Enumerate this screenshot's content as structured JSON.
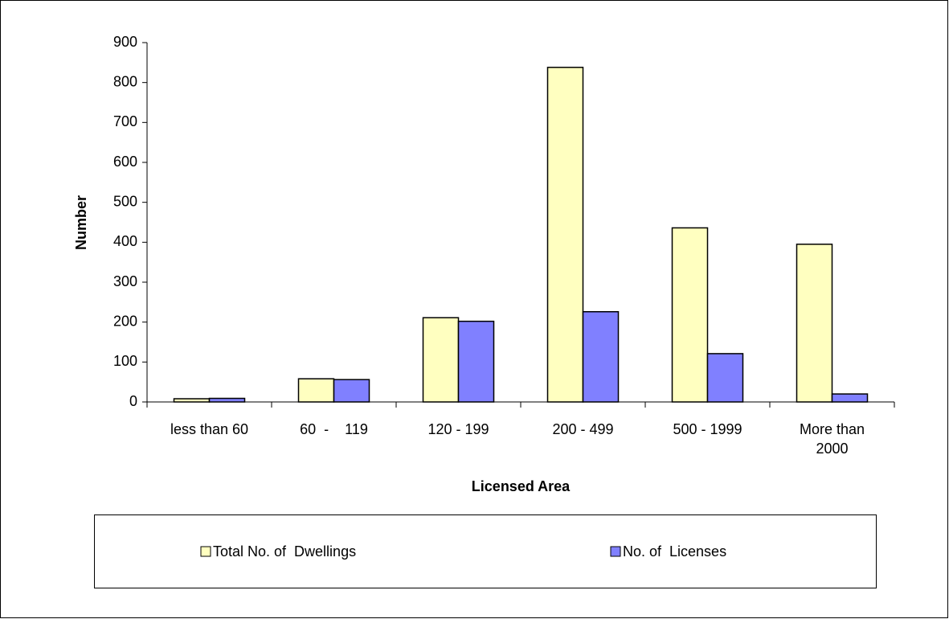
{
  "chart_data": {
    "type": "bar",
    "x_label": "Licensed Area",
    "y_label": "Number",
    "categories": [
      "less than 60",
      "60  -    119",
      "120 - 199",
      "200 - 499",
      "500 - 1999",
      "More than 2000"
    ],
    "series": [
      {
        "name": "Total No. of  Dwellings",
        "color": "#ffffc0",
        "values": [
          8,
          58,
          211,
          838,
          436,
          395
        ]
      },
      {
        "name": "No. of  Licenses",
        "color": "#8080ff",
        "values": [
          9,
          56,
          202,
          226,
          121,
          20
        ]
      }
    ],
    "ylim": [
      0,
      900
    ],
    "yticks": [
      0,
      100,
      200,
      300,
      400,
      500,
      600,
      700,
      800,
      900
    ],
    "legend": "bottom"
  }
}
